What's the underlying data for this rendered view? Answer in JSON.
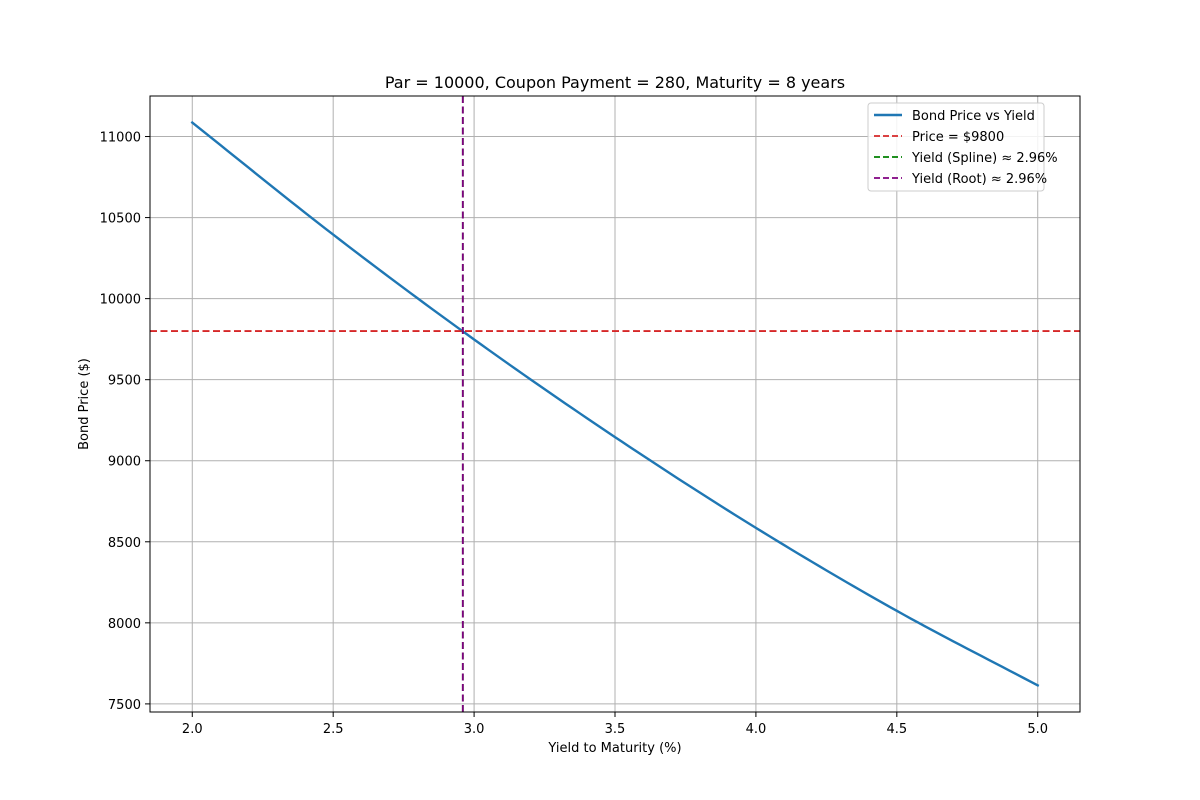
{
  "chart_data": {
    "type": "line",
    "title": "Par = 10000, Coupon Payment = 280, Maturity = 8 years",
    "xlabel": "Yield to Maturity (%)",
    "ylabel": "Bond Price ($)",
    "xlim": [
      1.85,
      5.15
    ],
    "ylim": [
      7450,
      11250
    ],
    "x_ticks": [
      2.0,
      2.5,
      3.0,
      3.5,
      4.0,
      4.5,
      5.0
    ],
    "x_tick_labels": [
      "2.0",
      "2.5",
      "3.0",
      "3.5",
      "4.0",
      "4.5",
      "5.0"
    ],
    "y_ticks": [
      7500,
      8000,
      8500,
      9000,
      9500,
      10000,
      10500,
      11000
    ],
    "y_tick_labels": [
      "7500",
      "8000",
      "8500",
      "9000",
      "9500",
      "10000",
      "10500",
      "11000"
    ],
    "grid": true,
    "legend_position": "top-right",
    "series": [
      {
        "name": "Bond Price vs Yield",
        "color": "#1f77b4",
        "style": "solid",
        "x": [
          2.0,
          2.5,
          3.0,
          3.5,
          4.0,
          4.5,
          5.0
        ],
        "y": [
          11086,
          10395,
          9748,
          9146,
          8586,
          8074,
          7614
        ]
      }
    ],
    "reference_lines": [
      {
        "name": "Price = $9800",
        "orientation": "horizontal",
        "value": 9800,
        "color": "#d62728",
        "style": "dashed"
      },
      {
        "name": "Yield (Spline) ≈ 2.96%",
        "orientation": "vertical",
        "value": 2.96,
        "color": "#008000",
        "style": "dashed"
      },
      {
        "name": "Yield (Root) ≈ 2.96%",
        "orientation": "vertical",
        "value": 2.96,
        "color": "#800080",
        "style": "dashed"
      }
    ],
    "legend": [
      {
        "label": "Bond Price vs Yield",
        "color": "#1f77b4",
        "style": "solid"
      },
      {
        "label": "Price = $9800",
        "color": "#d62728",
        "style": "dashed"
      },
      {
        "label": "Yield (Spline) ≈ 2.96%",
        "color": "#008000",
        "style": "dashed"
      },
      {
        "label": "Yield (Root) ≈ 2.96%",
        "color": "#800080",
        "style": "dashed"
      }
    ]
  }
}
